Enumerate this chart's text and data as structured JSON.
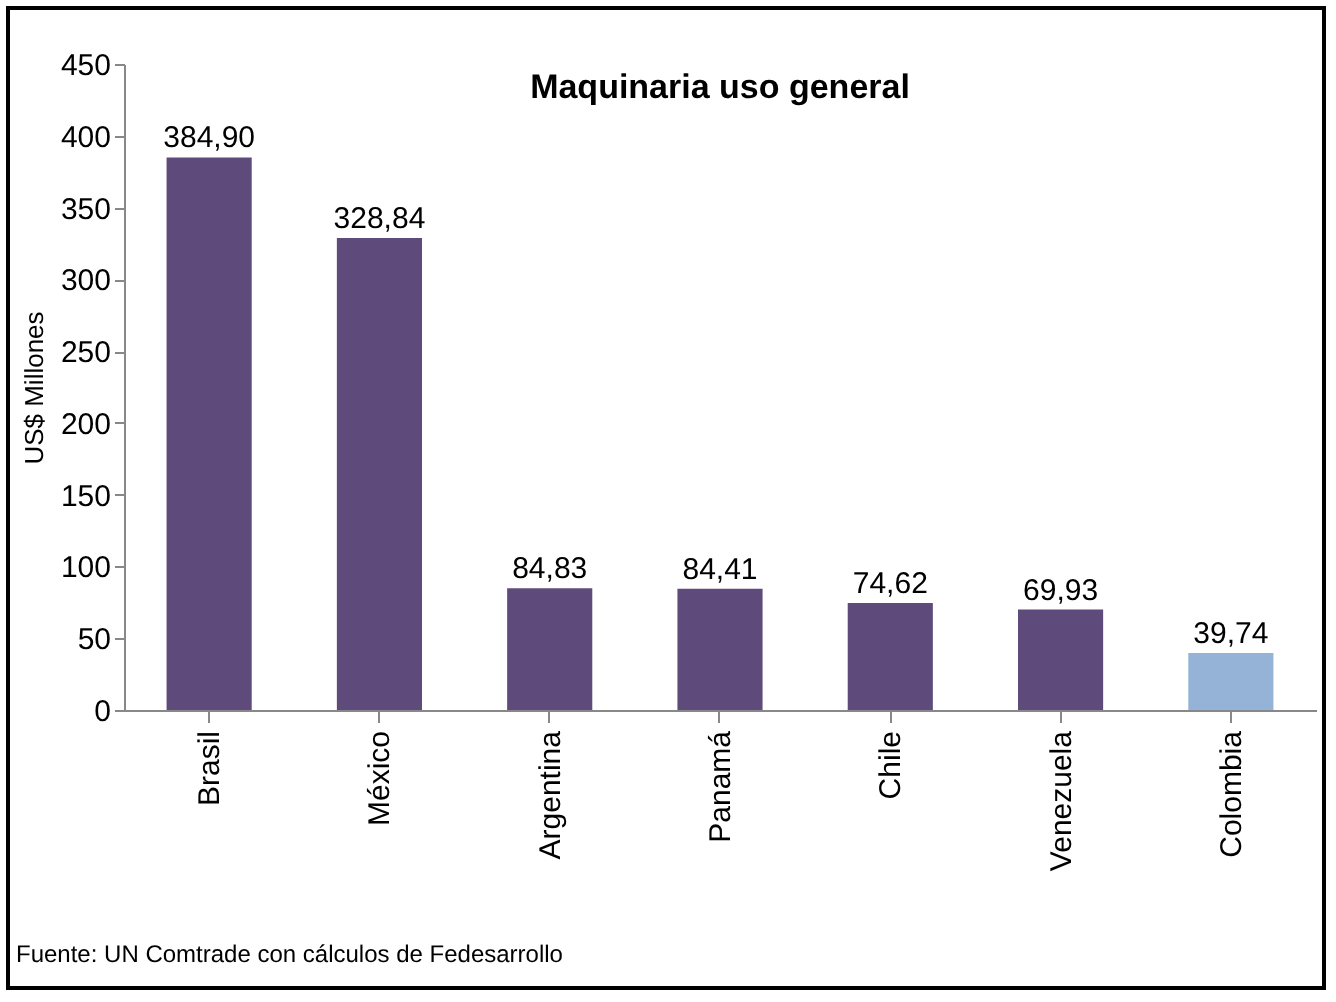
{
  "chart_data": {
    "type": "bar",
    "title": "Maquinaria uso general",
    "ylabel": "US$ Millones",
    "categories": [
      "Brasil",
      "México",
      "Argentina",
      "Panamá",
      "Chile",
      "Venezuela",
      "Colombia"
    ],
    "values": [
      384.9,
      328.84,
      84.83,
      84.41,
      74.62,
      69.93,
      39.74
    ],
    "colors": [
      "#5f4b7b",
      "#5f4b7b",
      "#5f4b7b",
      "#5f4b7b",
      "#5f4b7b",
      "#5f4b7b",
      "#95b3d7"
    ],
    "value_labels": [
      "384,90",
      "328,84",
      "84,83",
      "84,41",
      "74,62",
      "69,93",
      "39,74"
    ],
    "ylim": [
      0,
      450
    ],
    "yticks": [
      0,
      50,
      100,
      150,
      200,
      250,
      300,
      350,
      400,
      450
    ],
    "grid": false,
    "annotations": [
      "Fuente: UN Comtrade con cálculos de Fedesarrollo"
    ]
  }
}
